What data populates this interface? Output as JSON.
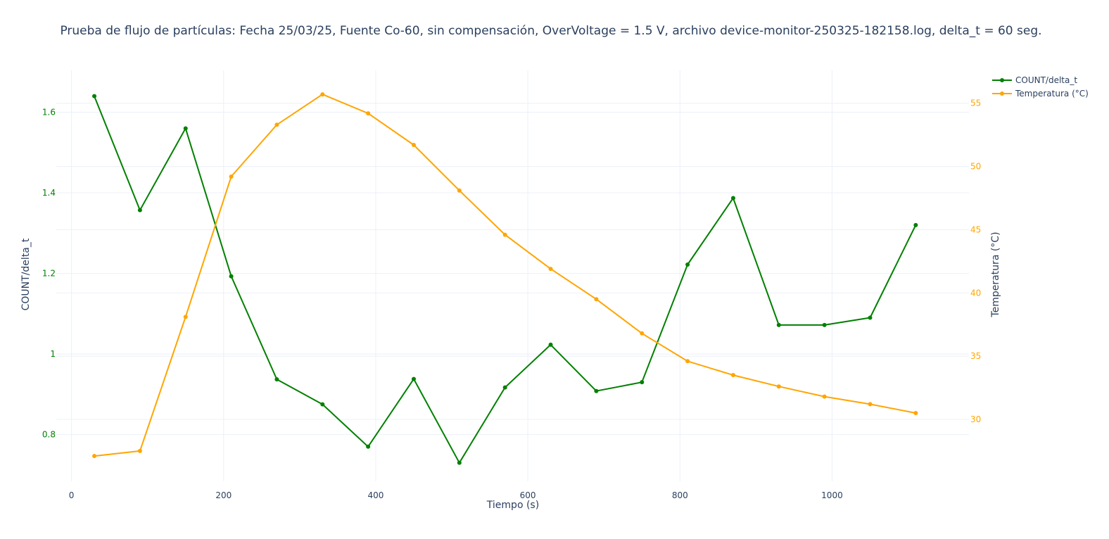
{
  "chart_data": {
    "type": "line",
    "title": "Prueba de flujo de partículas: Fecha 25/03/25, Fuente Co-60, sin compensación, OverVoltage = 1.5 V, archivo device-monitor-250325-182158.log, delta_t = 60 seg.",
    "xlabel": "Tiempo (s)",
    "ylabel": "COUNT/delta_t",
    "y2label": "Temperatura (°C)",
    "xlim": [
      -20,
      1180
    ],
    "ylim": [
      0.684,
      1.704
    ],
    "y2lim": [
      25.1,
      57.6
    ],
    "x_ticks": [
      0,
      200,
      400,
      600,
      800,
      1000
    ],
    "y_ticks": [
      0.8,
      1,
      1.2,
      1.4,
      1.6
    ],
    "y2_ticks": [
      30,
      35,
      40,
      45,
      50,
      55
    ],
    "x_tick_labels": [
      "0",
      "200",
      "400",
      "600",
      "800",
      "1000"
    ],
    "y_tick_labels": [
      "0.8",
      "1",
      "1.2",
      "1.4",
      "1.6"
    ],
    "y2_tick_labels": [
      "30",
      "35",
      "40",
      "45",
      "50",
      "55"
    ],
    "grid": true,
    "legend_position": "top-right",
    "x": [
      30,
      90,
      150,
      210,
      270,
      330,
      390,
      450,
      510,
      570,
      630,
      690,
      750,
      810,
      870,
      930,
      990,
      1050,
      1110
    ],
    "series": [
      {
        "name": "COUNT/delta_t",
        "axis": "y",
        "color": "#008000",
        "values": [
          1.64,
          1.357,
          1.56,
          1.193,
          0.937,
          0.875,
          0.77,
          0.938,
          0.73,
          0.917,
          1.023,
          0.908,
          0.93,
          1.222,
          1.387,
          1.072,
          1.072,
          1.09,
          1.32
        ]
      },
      {
        "name": "Temperatura (°C)",
        "axis": "y2",
        "color": "#FFA500",
        "values": [
          27.1,
          27.5,
          38.1,
          49.2,
          53.3,
          55.7,
          54.2,
          51.7,
          48.1,
          44.6,
          41.9,
          39.5,
          36.8,
          34.6,
          33.5,
          32.6,
          31.8,
          31.2,
          30.5
        ]
      }
    ]
  }
}
